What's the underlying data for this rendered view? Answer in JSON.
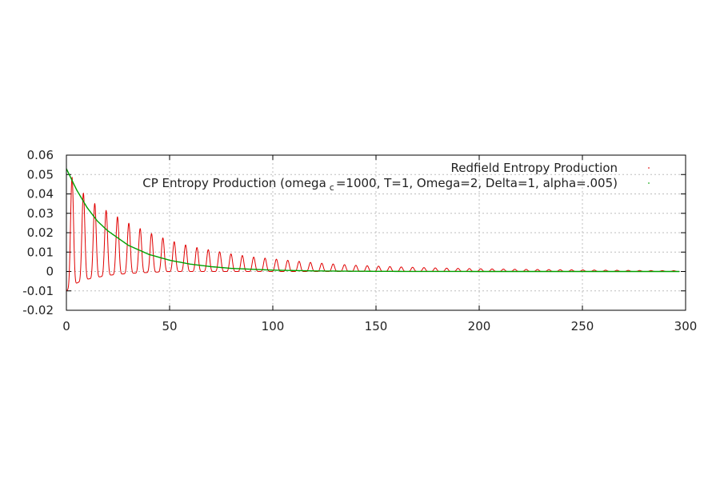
{
  "chart_data": {
    "type": "line",
    "title": "",
    "xlabel": "",
    "ylabel": "",
    "xlim": [
      0,
      300
    ],
    "ylim": [
      -0.02,
      0.06
    ],
    "x_ticks": [
      0,
      50,
      100,
      150,
      200,
      250,
      300
    ],
    "x_tick_labels": [
      "0",
      "50",
      "100",
      "150",
      "200",
      "250",
      "300"
    ],
    "y_ticks": [
      -0.02,
      -0.01,
      0,
      0.01,
      0.02,
      0.03,
      0.04,
      0.05,
      0.06
    ],
    "y_tick_labels": [
      "-0.02",
      "-0.01",
      "0",
      "0.01",
      "0.02",
      "0.03",
      "0.04",
      "0.05",
      "0.06"
    ],
    "grid": true,
    "legend_position": "top-right",
    "series": [
      {
        "name": "Redfield Entropy Production",
        "color": "#e00000",
        "style": "oscillating",
        "x": [
          0,
          1,
          2,
          3,
          5,
          7,
          10,
          15,
          20,
          25,
          30,
          40,
          50,
          60,
          70,
          80,
          90,
          100,
          110,
          120,
          130,
          140,
          150,
          160,
          170,
          180,
          190,
          200,
          220,
          240,
          260,
          280,
          297
        ],
        "peak_values": [
          0.054,
          0.052,
          0.05,
          0.048,
          0.045,
          0.042,
          0.038,
          0.034,
          0.031,
          0.028,
          0.025,
          0.02,
          0.016,
          0.013,
          0.011,
          0.009,
          0.0075,
          0.0065,
          0.0055,
          0.0045,
          0.0038,
          0.0032,
          0.0028,
          0.0024,
          0.0021,
          0.0018,
          0.0016,
          0.0014,
          0.0011,
          0.0009,
          0.0007,
          0.0005,
          0.0004
        ],
        "trough_values": [
          -0.01,
          -0.009,
          -0.008,
          -0.007,
          -0.006,
          -0.005,
          -0.004,
          -0.003,
          -0.002,
          -0.0015,
          -0.001,
          -0.0005,
          0,
          0,
          0,
          0,
          0,
          0,
          0,
          0,
          0,
          0,
          0,
          0,
          0,
          0,
          0,
          0,
          0,
          0,
          0,
          0,
          0
        ],
        "period": 5.5
      },
      {
        "name": "CP Entropy Production (omega",
        "name_sub": "c",
        "name_rest": "=1000, T=1, Omega=2, Delta=1, alpha=.005)",
        "color": "#00a000",
        "style": "smooth",
        "x": [
          0,
          5,
          10,
          15,
          20,
          30,
          40,
          50,
          60,
          70,
          80,
          100,
          120,
          140,
          160,
          200,
          250,
          297
        ],
        "y": [
          0.053,
          0.042,
          0.033,
          0.026,
          0.021,
          0.0135,
          0.0088,
          0.0058,
          0.0038,
          0.0025,
          0.0016,
          0.0007,
          0.0003,
          0.00013,
          5e-05,
          0,
          0,
          0
        ]
      }
    ]
  }
}
